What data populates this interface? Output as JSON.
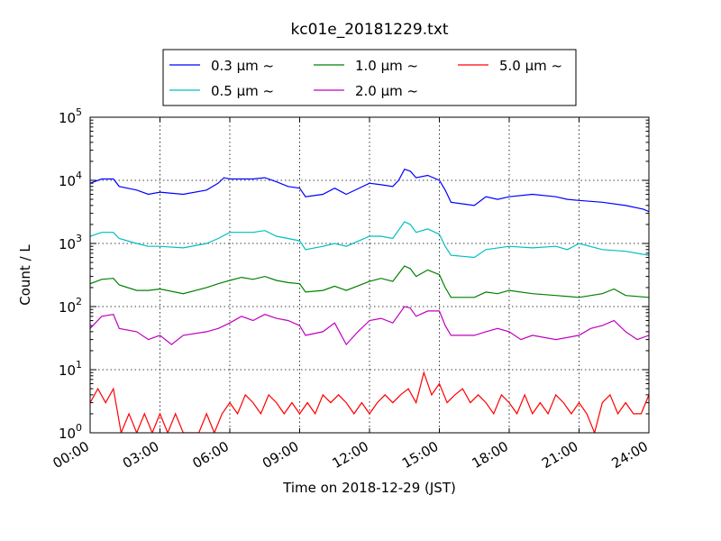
{
  "chart_data": {
    "type": "line",
    "title": "kc01e_20181229.txt",
    "xlabel": "Time on 2018-12-29 (JST)",
    "ylabel": "Count / L",
    "yscale": "log",
    "ylim": [
      1,
      100000
    ],
    "xlim": [
      "2018-12-29 00:00",
      "2018-12-30 00:00"
    ],
    "grid": true,
    "legend_position": "top-center",
    "x_ticks": [
      "00:00",
      "03:00",
      "06:00",
      "09:00",
      "12:00",
      "15:00",
      "18:00",
      "21:00",
      "24:00"
    ],
    "y_ticks": [
      {
        "base": "10",
        "exp": "0"
      },
      {
        "base": "10",
        "exp": "1"
      },
      {
        "base": "10",
        "exp": "2"
      },
      {
        "base": "10",
        "exp": "3"
      },
      {
        "base": "10",
        "exp": "4"
      },
      {
        "base": "10",
        "exp": "5"
      }
    ],
    "series": [
      {
        "name": "0.3 μm ~",
        "color": "#0000ff",
        "points": [
          [
            "00:00",
            9000
          ],
          [
            "00:30",
            10500
          ],
          [
            "01:00",
            10500
          ],
          [
            "01:15",
            8000
          ],
          [
            "02:00",
            7000
          ],
          [
            "02:30",
            6000
          ],
          [
            "03:00",
            6500
          ],
          [
            "04:00",
            6000
          ],
          [
            "05:00",
            7000
          ],
          [
            "05:30",
            9000
          ],
          [
            "05:45",
            11000
          ],
          [
            "06:00",
            10500
          ],
          [
            "07:00",
            10500
          ],
          [
            "07:30",
            11000
          ],
          [
            "08:00",
            9500
          ],
          [
            "08:30",
            8000
          ],
          [
            "09:00",
            7500
          ],
          [
            "09:15",
            5500
          ],
          [
            "10:00",
            6000
          ],
          [
            "10:30",
            7500
          ],
          [
            "11:00",
            6000
          ],
          [
            "12:00",
            9000
          ],
          [
            "12:30",
            8500
          ],
          [
            "13:00",
            8000
          ],
          [
            "13:15",
            10000
          ],
          [
            "13:30",
            15000
          ],
          [
            "13:45",
            14000
          ],
          [
            "14:00",
            11000
          ],
          [
            "14:30",
            12000
          ],
          [
            "15:00",
            10000
          ],
          [
            "15:15",
            7000
          ],
          [
            "15:30",
            4500
          ],
          [
            "16:30",
            4000
          ],
          [
            "17:00",
            5500
          ],
          [
            "17:30",
            5000
          ],
          [
            "18:00",
            5500
          ],
          [
            "19:00",
            6000
          ],
          [
            "20:00",
            5500
          ],
          [
            "20:30",
            5000
          ],
          [
            "21:00",
            4800
          ],
          [
            "22:00",
            4500
          ],
          [
            "23:00",
            4000
          ],
          [
            "23:45",
            3500
          ],
          [
            "24:00",
            3200
          ]
        ]
      },
      {
        "name": "0.5 μm ~",
        "color": "#00bfbf",
        "points": [
          [
            "00:00",
            1300
          ],
          [
            "00:30",
            1500
          ],
          [
            "01:00",
            1500
          ],
          [
            "01:15",
            1200
          ],
          [
            "02:00",
            1000
          ],
          [
            "02:30",
            900
          ],
          [
            "03:00",
            900
          ],
          [
            "04:00",
            850
          ],
          [
            "05:00",
            1000
          ],
          [
            "05:30",
            1200
          ],
          [
            "06:00",
            1500
          ],
          [
            "07:00",
            1500
          ],
          [
            "07:30",
            1600
          ],
          [
            "08:00",
            1300
          ],
          [
            "08:30",
            1200
          ],
          [
            "09:00",
            1100
          ],
          [
            "09:15",
            800
          ],
          [
            "10:00",
            900
          ],
          [
            "10:30",
            1000
          ],
          [
            "11:00",
            900
          ],
          [
            "12:00",
            1300
          ],
          [
            "12:30",
            1300
          ],
          [
            "13:00",
            1200
          ],
          [
            "13:30",
            2200
          ],
          [
            "13:45",
            2000
          ],
          [
            "14:00",
            1500
          ],
          [
            "14:30",
            1700
          ],
          [
            "15:00",
            1400
          ],
          [
            "15:15",
            900
          ],
          [
            "15:30",
            650
          ],
          [
            "16:30",
            600
          ],
          [
            "17:00",
            800
          ],
          [
            "18:00",
            900
          ],
          [
            "19:00",
            850
          ],
          [
            "20:00",
            900
          ],
          [
            "20:30",
            800
          ],
          [
            "21:00",
            1000
          ],
          [
            "22:00",
            800
          ],
          [
            "23:00",
            750
          ],
          [
            "24:00",
            650
          ]
        ]
      },
      {
        "name": "1.0 μm ~",
        "color": "#008000",
        "points": [
          [
            "00:00",
            230
          ],
          [
            "00:30",
            270
          ],
          [
            "01:00",
            280
          ],
          [
            "01:15",
            220
          ],
          [
            "02:00",
            180
          ],
          [
            "02:30",
            180
          ],
          [
            "03:00",
            190
          ],
          [
            "04:00",
            160
          ],
          [
            "05:00",
            200
          ],
          [
            "05:30",
            230
          ],
          [
            "06:00",
            260
          ],
          [
            "06:30",
            290
          ],
          [
            "07:00",
            270
          ],
          [
            "07:30",
            300
          ],
          [
            "08:00",
            260
          ],
          [
            "08:30",
            240
          ],
          [
            "09:00",
            230
          ],
          [
            "09:15",
            170
          ],
          [
            "10:00",
            180
          ],
          [
            "10:30",
            210
          ],
          [
            "11:00",
            180
          ],
          [
            "12:00",
            250
          ],
          [
            "12:30",
            280
          ],
          [
            "13:00",
            250
          ],
          [
            "13:30",
            440
          ],
          [
            "13:45",
            400
          ],
          [
            "14:00",
            300
          ],
          [
            "14:30",
            380
          ],
          [
            "15:00",
            320
          ],
          [
            "15:15",
            200
          ],
          [
            "15:30",
            140
          ],
          [
            "16:30",
            140
          ],
          [
            "17:00",
            170
          ],
          [
            "17:30",
            160
          ],
          [
            "18:00",
            180
          ],
          [
            "19:00",
            160
          ],
          [
            "20:00",
            150
          ],
          [
            "21:00",
            140
          ],
          [
            "22:00",
            160
          ],
          [
            "22:30",
            190
          ],
          [
            "23:00",
            150
          ],
          [
            "24:00",
            140
          ]
        ]
      },
      {
        "name": "2.0 μm ~",
        "color": "#bf00bf",
        "points": [
          [
            "00:00",
            45
          ],
          [
            "00:30",
            70
          ],
          [
            "01:00",
            75
          ],
          [
            "01:15",
            45
          ],
          [
            "02:00",
            40
          ],
          [
            "02:30",
            30
          ],
          [
            "03:00",
            35
          ],
          [
            "03:30",
            25
          ],
          [
            "04:00",
            35
          ],
          [
            "05:00",
            40
          ],
          [
            "05:30",
            45
          ],
          [
            "06:00",
            55
          ],
          [
            "06:30",
            70
          ],
          [
            "07:00",
            60
          ],
          [
            "07:30",
            75
          ],
          [
            "08:00",
            65
          ],
          [
            "08:30",
            60
          ],
          [
            "09:00",
            50
          ],
          [
            "09:15",
            35
          ],
          [
            "10:00",
            40
          ],
          [
            "10:30",
            55
          ],
          [
            "11:00",
            25
          ],
          [
            "11:30",
            40
          ],
          [
            "12:00",
            60
          ],
          [
            "12:30",
            65
          ],
          [
            "13:00",
            55
          ],
          [
            "13:30",
            100
          ],
          [
            "13:45",
            95
          ],
          [
            "14:00",
            70
          ],
          [
            "14:30",
            85
          ],
          [
            "15:00",
            85
          ],
          [
            "15:15",
            50
          ],
          [
            "15:30",
            35
          ],
          [
            "16:30",
            35
          ],
          [
            "17:00",
            40
          ],
          [
            "17:30",
            45
          ],
          [
            "18:00",
            40
          ],
          [
            "18:30",
            30
          ],
          [
            "19:00",
            35
          ],
          [
            "20:00",
            30
          ],
          [
            "21:00",
            35
          ],
          [
            "21:30",
            45
          ],
          [
            "22:00",
            50
          ],
          [
            "22:30",
            60
          ],
          [
            "23:00",
            40
          ],
          [
            "23:30",
            30
          ],
          [
            "24:00",
            35
          ]
        ]
      },
      {
        "name": "5.0 μm ~",
        "color": "#ff0000",
        "points": [
          [
            "00:00",
            3
          ],
          [
            "00:20",
            5
          ],
          [
            "00:40",
            3
          ],
          [
            "01:00",
            5
          ],
          [
            "01:20",
            1
          ],
          [
            "01:40",
            2
          ],
          [
            "02:00",
            1
          ],
          [
            "02:20",
            2
          ],
          [
            "02:40",
            1
          ],
          [
            "03:00",
            2
          ],
          [
            "03:20",
            1
          ],
          [
            "03:40",
            2
          ],
          [
            "04:00",
            1
          ],
          [
            "04:20",
            1
          ],
          [
            "04:40",
            1
          ],
          [
            "05:00",
            2
          ],
          [
            "05:20",
            1
          ],
          [
            "05:40",
            2
          ],
          [
            "06:00",
            3
          ],
          [
            "06:20",
            2
          ],
          [
            "06:40",
            4
          ],
          [
            "07:00",
            3
          ],
          [
            "07:20",
            2
          ],
          [
            "07:40",
            4
          ],
          [
            "08:00",
            3
          ],
          [
            "08:20",
            2
          ],
          [
            "08:40",
            3
          ],
          [
            "09:00",
            2
          ],
          [
            "09:20",
            3
          ],
          [
            "09:40",
            2
          ],
          [
            "10:00",
            4
          ],
          [
            "10:20",
            3
          ],
          [
            "10:40",
            4
          ],
          [
            "11:00",
            3
          ],
          [
            "11:20",
            2
          ],
          [
            "11:40",
            3
          ],
          [
            "12:00",
            2
          ],
          [
            "12:20",
            3
          ],
          [
            "12:40",
            4
          ],
          [
            "13:00",
            3
          ],
          [
            "13:20",
            4
          ],
          [
            "13:40",
            5
          ],
          [
            "14:00",
            3
          ],
          [
            "14:20",
            9
          ],
          [
            "14:40",
            4
          ],
          [
            "15:00",
            6
          ],
          [
            "15:20",
            3
          ],
          [
            "15:40",
            4
          ],
          [
            "16:00",
            5
          ],
          [
            "16:20",
            3
          ],
          [
            "16:40",
            4
          ],
          [
            "17:00",
            3
          ],
          [
            "17:20",
            2
          ],
          [
            "17:40",
            4
          ],
          [
            "18:00",
            3
          ],
          [
            "18:20",
            2
          ],
          [
            "18:40",
            4
          ],
          [
            "19:00",
            2
          ],
          [
            "19:20",
            3
          ],
          [
            "19:40",
            2
          ],
          [
            "20:00",
            4
          ],
          [
            "20:20",
            3
          ],
          [
            "20:40",
            2
          ],
          [
            "21:00",
            3
          ],
          [
            "21:20",
            2
          ],
          [
            "21:40",
            1
          ],
          [
            "22:00",
            3
          ],
          [
            "22:20",
            4
          ],
          [
            "22:40",
            2
          ],
          [
            "23:00",
            3
          ],
          [
            "23:20",
            2
          ],
          [
            "23:40",
            2
          ],
          [
            "24:00",
            4
          ]
        ]
      }
    ]
  }
}
